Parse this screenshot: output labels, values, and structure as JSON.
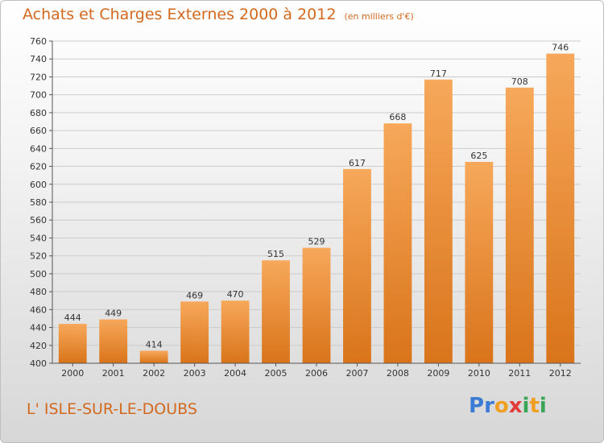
{
  "title": "Achats et Charges Externes 2000 à 2012",
  "unit_note": "(en milliers d'€)",
  "commune": "L' ISLE-SUR-LE-DOUBS",
  "logo": {
    "letters": [
      "P",
      "r",
      "o",
      "x",
      "i",
      "t",
      "i"
    ],
    "colors": [
      "#3a7bd5",
      "#3a7bd5",
      "#f0a020",
      "#e23c3c",
      "#3aa655",
      "#f0a020",
      "#3aa655"
    ]
  },
  "colors": {
    "accent": "#d2691e",
    "bar_light": "#f7a85a",
    "bar_dark": "#d9741a",
    "grid": "#cccccc"
  },
  "chart_data": {
    "type": "bar",
    "title": "Achats et Charges Externes 2000 à 2012",
    "subtitle": "(en milliers d'€)",
    "categories": [
      "2000",
      "2001",
      "2002",
      "2003",
      "2004",
      "2005",
      "2006",
      "2007",
      "2008",
      "2009",
      "2010",
      "2011",
      "2012"
    ],
    "values": [
      444,
      449,
      414,
      469,
      470,
      515,
      529,
      617,
      668,
      717,
      625,
      708,
      746
    ],
    "ylim": [
      400,
      760
    ],
    "yticks": [
      400,
      420,
      440,
      460,
      480,
      500,
      520,
      540,
      560,
      580,
      600,
      620,
      640,
      660,
      680,
      700,
      720,
      740,
      760
    ],
    "grid": true,
    "data_labels": true
  }
}
